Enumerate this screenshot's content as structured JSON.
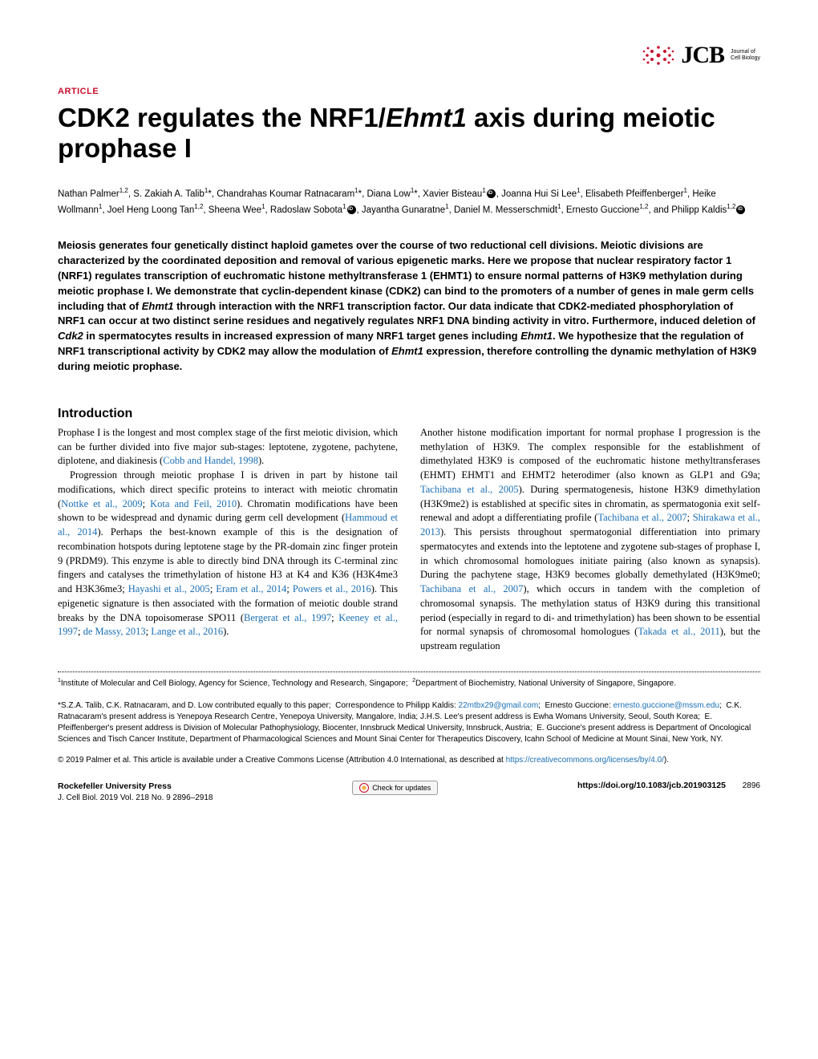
{
  "journal": {
    "logo_main": "JCB",
    "logo_sub_line1": "Journal of",
    "logo_sub_line2": "Cell Biology",
    "logo_color": "#c8102e"
  },
  "article_label": "ARTICLE",
  "title_html": "CDK2 regulates the NRF1/<em>Ehmt1</em> axis during meiotic prophase I",
  "authors_html": "Nathan Palmer<sup>1,2</sup>, S. Zakiah A. Talib<sup>1</sup>*, Chandrahas Koumar Ratnacaram<sup>1</sup>*, Diana Low<sup>1</sup>*, Xavier Bisteau<sup>1</sup><span class=\"orcid\"></span>, Joanna Hui Si Lee<sup>1</sup>, Elisabeth Pfeiffenberger<sup>1</sup>, Heike Wollmann<sup>1</sup>, Joel Heng Loong Tan<sup>1,2</sup>, Sheena Wee<sup>1</sup>, Radoslaw Sobota<sup>1</sup><span class=\"orcid\"></span>, Jayantha Gunaratne<sup>1</sup>, Daniel M. Messerschmidt<sup>1</sup>, Ernesto Guccione<sup>1,2</sup>, and Philipp Kaldis<sup>1,2</sup><span class=\"orcid\"></span>",
  "abstract_html": "Meiosis generates four genetically distinct haploid gametes over the course of two reductional cell divisions. Meiotic divisions are characterized by the coordinated deposition and removal of various epigenetic marks. Here we propose that nuclear respiratory factor 1 (NRF1) regulates transcription of euchromatic histone methyltransferase 1 (EHMT1) to ensure normal patterns of H3K9 methylation during meiotic prophase I. We demonstrate that cyclin-dependent kinase (CDK2) can bind to the promoters of a number of genes in male germ cells including that of <em>Ehmt1</em> through interaction with the NRF1 transcription factor. Our data indicate that CDK2-mediated phosphorylation of NRF1 can occur at two distinct serine residues and negatively regulates NRF1 DNA binding activity in vitro. Furthermore, induced deletion of <em>Cdk2</em> in spermatocytes results in increased expression of many NRF1 target genes including <em>Ehmt1</em>. We hypothesize that the regulation of NRF1 transcriptional activity by CDK2 may allow the modulation of <em>Ehmt1</em> expression, therefore controlling the dynamic methylation of H3K9 during meiotic prophase.",
  "section_heading": "Introduction",
  "col1": {
    "p1_html": "Prophase I is the longest and most complex stage of the first meiotic division, which can be further divided into five major sub-stages: leptotene, zygotene, pachytene, diplotene, and diakinesis (<span class=\"link\">Cobb and Handel, 1998</span>).",
    "p2_html": "Progression through meiotic prophase I is driven in part by histone tail modifications, which direct specific proteins to interact with meiotic chromatin (<span class=\"link\">Nottke et al., 2009</span>; <span class=\"link\">Kota and Feil, 2010</span>). Chromatin modifications have been shown to be widespread and dynamic during germ cell development (<span class=\"link\">Hammoud et al., 2014</span>). Perhaps the best-known example of this is the designation of recombination hotspots during leptotene stage by the PR-domain zinc finger protein 9 (PRDM9). This enzyme is able to directly bind DNA through its C-terminal zinc fingers and catalyses the trimethylation of histone H3 at K4 and K36 (H3K4me3 and H3K36me3; <span class=\"link\">Hayashi et al., 2005</span>; <span class=\"link\">Eram et al., 2014</span>; <span class=\"link\">Powers et al., 2016</span>). This epigenetic signature is then associated with the formation of meiotic double strand breaks by the DNA topoisomerase SPO11 (<span class=\"link\">Bergerat et al., 1997</span>; <span class=\"link\">Keeney et al., 1997</span>; <span class=\"link\">de Massy, 2013</span>; <span class=\"link\">Lange et al., 2016</span>)."
  },
  "col2": {
    "p1_html": "Another histone modification important for normal prophase I progression is the methylation of H3K9. The complex responsible for the establishment of dimethylated H3K9 is composed of the euchromatic histone methyltransferases (EHMT) EHMT1 and EHMT2 heterodimer (also known as GLP1 and G9a; <span class=\"link\">Tachibana et al., 2005</span>). During spermatogenesis, histone H3K9 dimethylation (H3K9me2) is established at specific sites in chromatin, as spermatogonia exit self-renewal and adopt a differentiating profile (<span class=\"link\">Tachibana et al., 2007</span>; <span class=\"link\">Shirakawa et al., 2013</span>). This persists throughout spermatogonial differentiation into primary spermatocytes and extends into the leptotene and zygotene sub-stages of prophase I, in which chromosomal homologues initiate pairing (also known as synapsis). During the pachytene stage, H3K9 becomes globally demethylated (H3K9me0; <span class=\"link\">Tachibana et al., 2007</span>), which occurs in tandem with the completion of chromosomal synapsis. The methylation status of H3K9 during this transitional period (especially in regard to di- and trimethylation) has been shown to be essential for normal synapsis of chromosomal homologues (<span class=\"link\">Takada et al., 2011</span>), but the upstream regulation"
  },
  "affiliations_html": "<sup>1</sup>Institute of Molecular and Cell Biology, Agency for Science, Technology and Research, Singapore;&nbsp;&nbsp;<sup>2</sup>Department of Biochemistry, National University of Singapore, Singapore.",
  "correspondence_html": "*S.Z.A. Talib, C.K. Ratnacaram, and D. Low contributed equally to this paper;&nbsp;&nbsp;Correspondence to Philipp Kaldis: <span class=\"link\">22mtbx29@gmail.com</span>;&nbsp;&nbsp;Ernesto Guccione: <span class=\"link\">ernesto.guccione@mssm.edu</span>;&nbsp;&nbsp;C.K. Ratnacaram's present address is Yenepoya Research Centre, Yenepoya University, Mangalore, India; J.H.S. Lee's present address is Ewha Womans University, Seoul, South Korea;&nbsp;&nbsp;E. Pfeiffenberger's present address is Division of Molecular Pathophysiology, Biocenter, Innsbruck Medical University, Innsbruck, Austria;&nbsp;&nbsp;E. Guccione's present address is Department of Oncological Sciences and Tisch Cancer Institute, Department of Pharmacological Sciences and Mount Sinai Center for Therapeutics Discovery, Icahn School of Medicine at Mount Sinai, New York, NY.",
  "license_html": "© 2019 Palmer et al. This article is available under a Creative Commons License (Attribution 4.0 International, as described at <span class=\"link\">https://creativecommons.org/licenses/by/4.0/</span>).",
  "footer": {
    "press": "Rockefeller University Press",
    "citation": "J. Cell Biol. 2019 Vol. 218 No. 9   2896–2918",
    "check_updates": "Check for updates",
    "doi": "https://doi.org/10.1083/jcb.201903125",
    "page": "2896"
  },
  "colors": {
    "accent": "#c8102e",
    "link": "#1a6fb5",
    "text": "#000000",
    "bg": "#ffffff"
  }
}
